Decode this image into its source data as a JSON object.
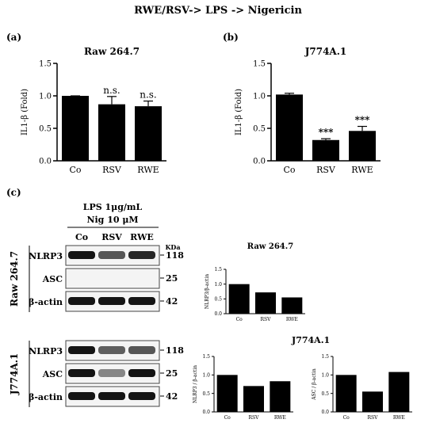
{
  "figure_title": "RWE/RSV-> LPS -> Nigericin",
  "panels": {
    "a": "(a)",
    "b": "(b)",
    "c": "(c)"
  },
  "chart_data": [
    {
      "id": "a",
      "type": "bar",
      "title": "Raw 264.7",
      "ylabel": "IL1-β (Fold)",
      "categories": [
        "Co",
        "RSV",
        "RWE"
      ],
      "values": [
        1.0,
        0.87,
        0.84
      ],
      "errors": [
        0.0,
        0.12,
        0.08
      ],
      "annotations": [
        "",
        "n.s.",
        "n.s."
      ],
      "ylim": [
        0,
        1.5
      ],
      "yticks": [
        "0.0",
        "0.5",
        "1.0",
        "1.5"
      ],
      "ytick_values": [
        0,
        0.5,
        1.0,
        1.5
      ]
    },
    {
      "id": "b",
      "type": "bar",
      "title": "J774A.1",
      "ylabel": "IL1-β (Fold)",
      "categories": [
        "Co",
        "RSV",
        "RWE"
      ],
      "values": [
        1.02,
        0.32,
        0.46
      ],
      "errors": [
        0.02,
        0.02,
        0.07
      ],
      "annotations": [
        "",
        "***",
        "***"
      ],
      "ylim": [
        0,
        1.5
      ],
      "yticks": [
        "0.0",
        "0.5",
        "1.0",
        "1.5"
      ],
      "ytick_values": [
        0,
        0.5,
        1.0,
        1.5
      ]
    },
    {
      "id": "c1",
      "type": "bar",
      "title": "Raw 264.7",
      "ylabel": "NLRP3/β-actin",
      "categories": [
        "Co",
        "RSV",
        "RWE"
      ],
      "values": [
        1.0,
        0.72,
        0.55
      ],
      "ylim": [
        0,
        1.5
      ],
      "yticks": [
        "0.0",
        "0.5",
        "1.0",
        "1.5"
      ],
      "ytick_values": [
        0,
        0.5,
        1.0,
        1.5
      ]
    },
    {
      "id": "c2",
      "type": "bar",
      "title": "",
      "ylabel": "NLRP3 / β-actin",
      "categories": [
        "Co",
        "RSV",
        "RWE"
      ],
      "values": [
        1.0,
        0.7,
        0.83
      ],
      "ylim": [
        0,
        1.5
      ],
      "yticks": [
        "0.0",
        "0.5",
        "1.0",
        "1.5"
      ],
      "ytick_values": [
        0,
        0.5,
        1.0,
        1.5
      ]
    },
    {
      "id": "c3",
      "type": "bar",
      "title": "",
      "ylabel": "ASC / β-actin",
      "categories": [
        "Co",
        "RSV",
        "RWE"
      ],
      "values": [
        1.0,
        0.55,
        1.08
      ],
      "ylim": [
        0,
        1.5
      ],
      "yticks": [
        "0.0",
        "0.5",
        "1.0",
        "1.5"
      ],
      "ytick_values": [
        0,
        0.5,
        1.0,
        1.5
      ]
    }
  ],
  "j774_group_title": "J774A.1",
  "western": {
    "treatment_line1": "LPS 1μg/mL",
    "treatment_line2": "Nig 10 μM",
    "lanes": [
      "Co",
      "RSV",
      "RWE"
    ],
    "kda_label": "KDa",
    "groups": [
      {
        "cell_line": "Raw 264.7",
        "blots": [
          {
            "protein": "NLRP3",
            "kda": "118",
            "intensity": [
              0.95,
              0.6,
              0.85
            ]
          },
          {
            "protein": "ASC",
            "kda": "25",
            "intensity": [
              0.0,
              0.0,
              0.0
            ]
          },
          {
            "protein": "β-actin",
            "kda": "42",
            "intensity": [
              0.95,
              0.95,
              0.95
            ]
          }
        ]
      },
      {
        "cell_line": "J774A.1",
        "blots": [
          {
            "protein": "NLRP3",
            "kda": "118",
            "intensity": [
              0.95,
              0.55,
              0.6
            ]
          },
          {
            "protein": "ASC",
            "kda": "25",
            "intensity": [
              0.95,
              0.35,
              0.95
            ]
          },
          {
            "protein": "β-actin",
            "kda": "42",
            "intensity": [
              0.95,
              0.95,
              0.95
            ]
          }
        ]
      }
    ]
  }
}
